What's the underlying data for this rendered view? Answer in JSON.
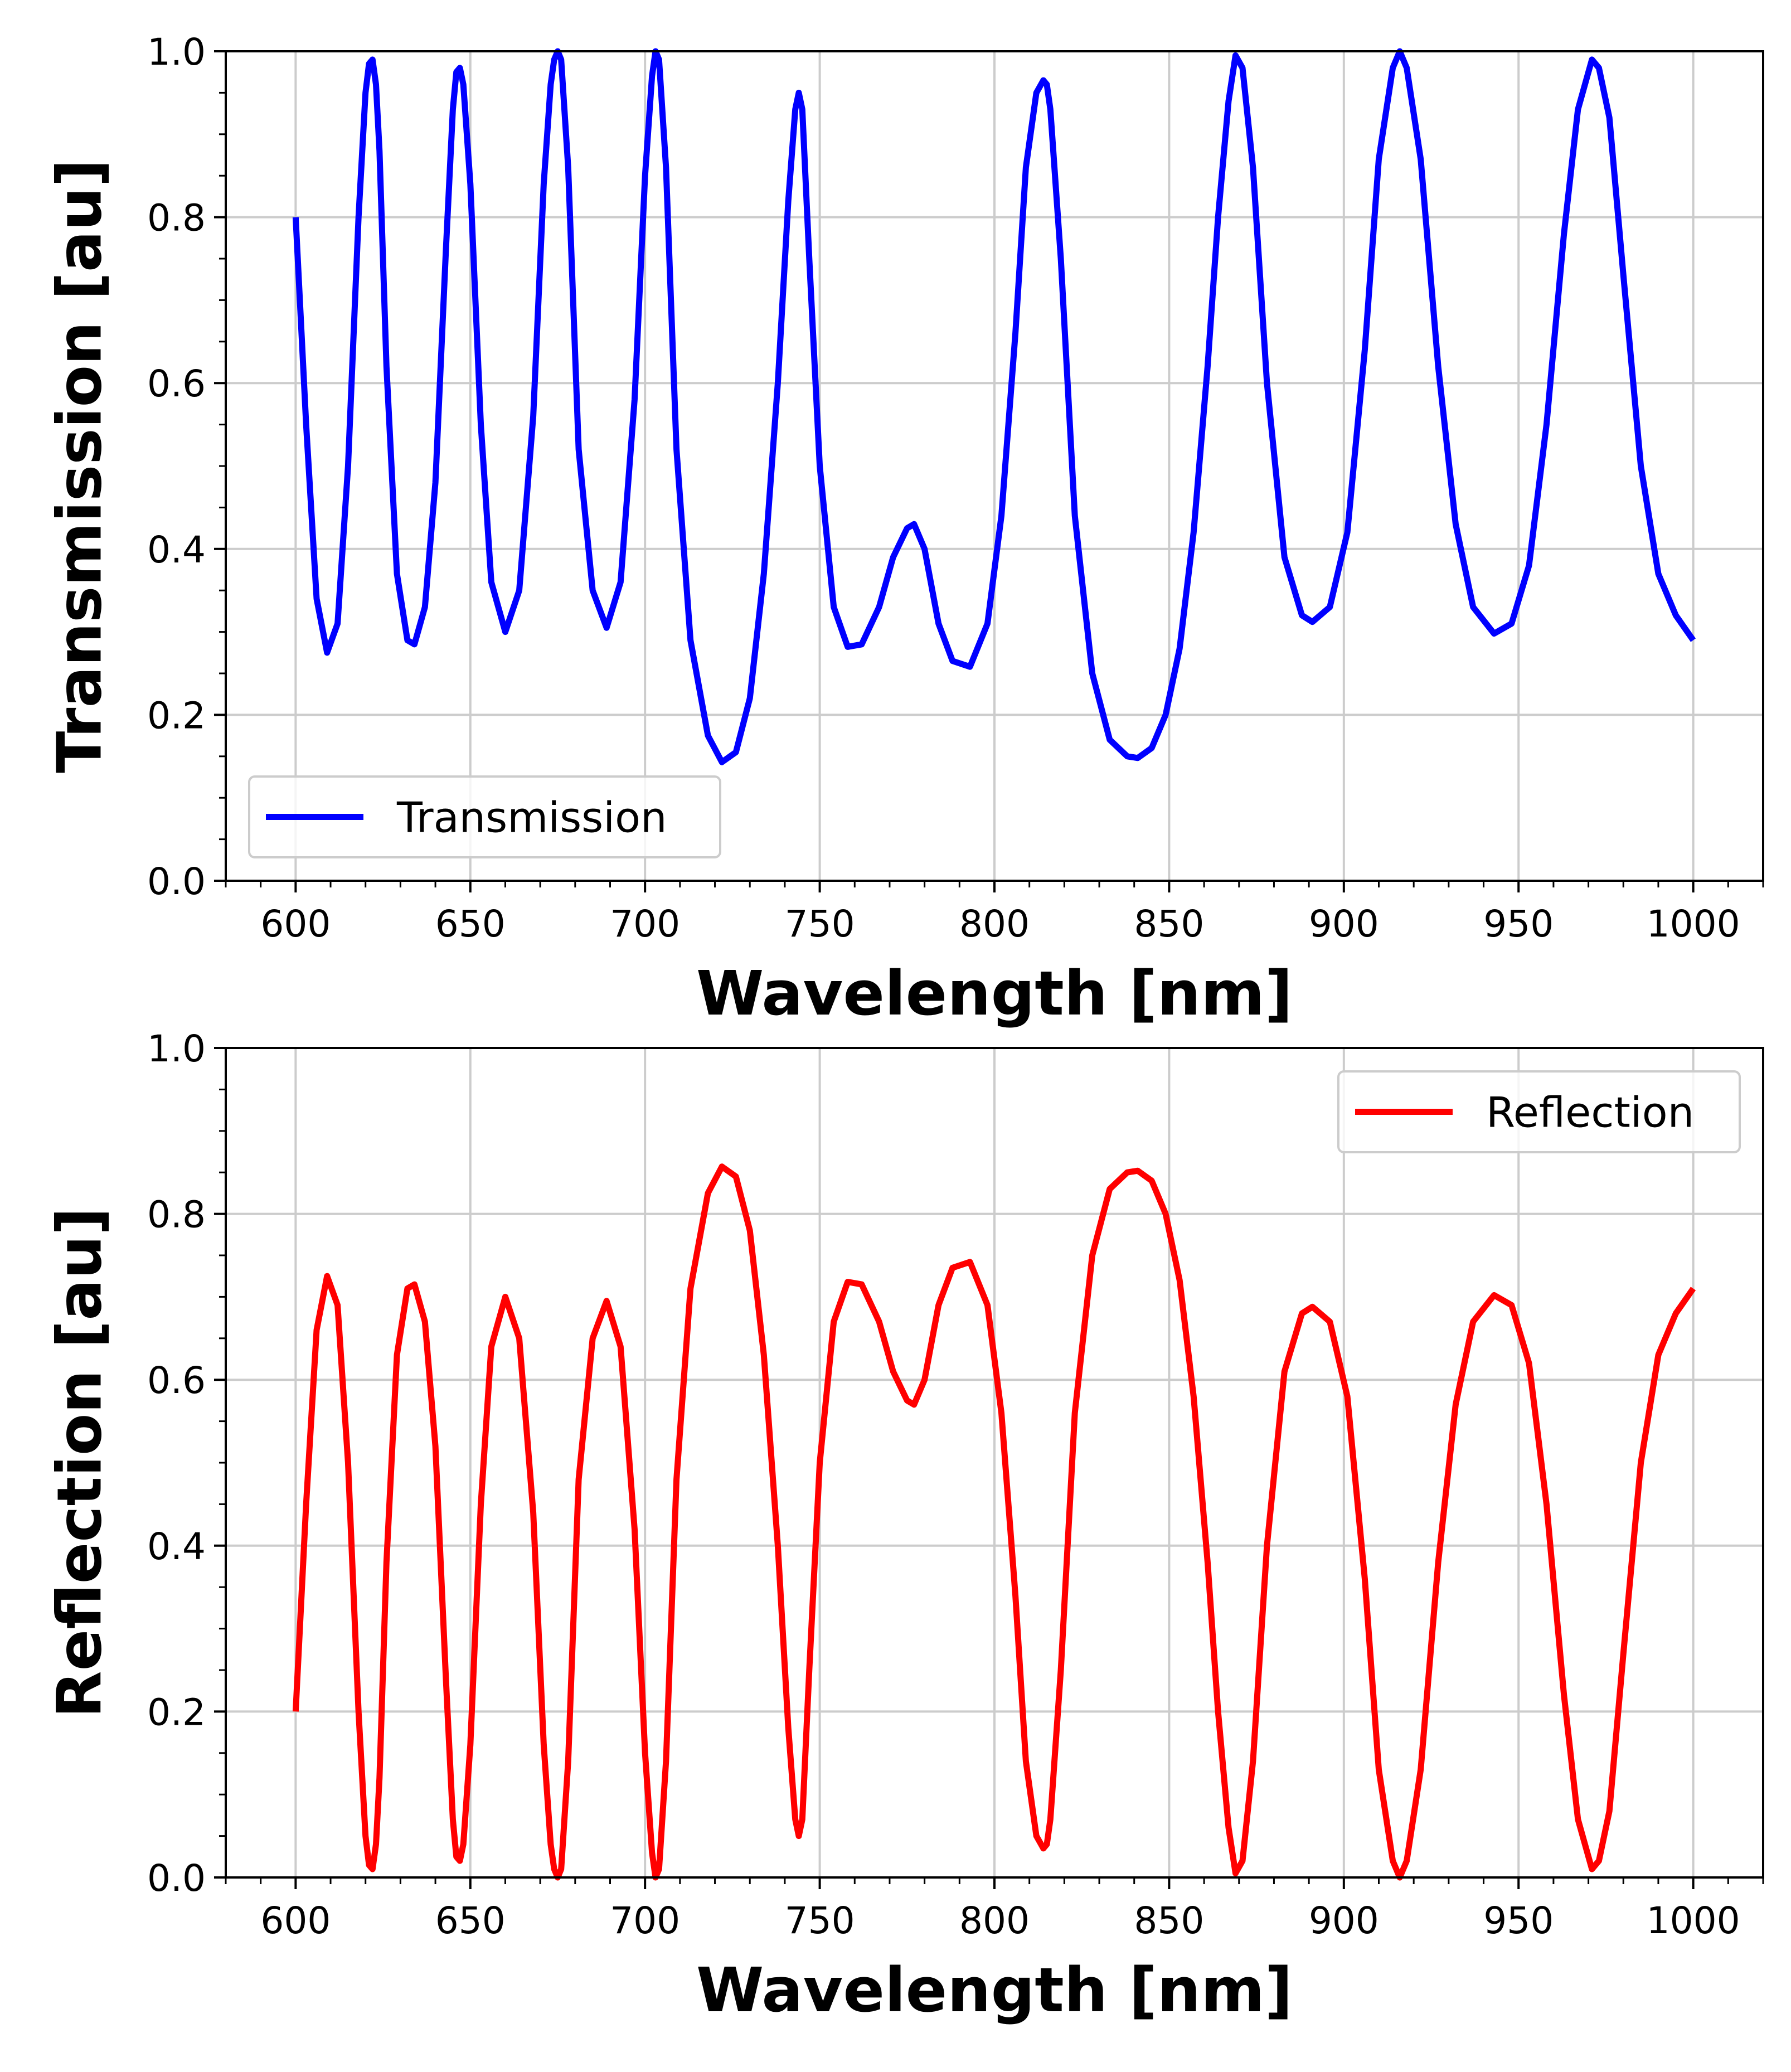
{
  "chart_data": [
    {
      "type": "line",
      "xlabel": "Wavelength [nm]",
      "ylabel": "Transmission [au]",
      "xlim": [
        580,
        1020
      ],
      "ylim": [
        0.0,
        1.0
      ],
      "xticks": [
        "600",
        "650",
        "700",
        "750",
        "800",
        "850",
        "900",
        "950",
        "1000"
      ],
      "yticks": [
        "0.0",
        "0.2",
        "0.4",
        "0.6",
        "0.8",
        "1.0"
      ],
      "grid": true,
      "legend_position": "lower left",
      "series": [
        {
          "name": "Transmission",
          "color": "#0000ff",
          "x": [
            600,
            603,
            606,
            609,
            612,
            615,
            618,
            620,
            621,
            622,
            623,
            624,
            626,
            629,
            632,
            634,
            637,
            640,
            643,
            645,
            646,
            647,
            648,
            650,
            653,
            656,
            660,
            664,
            668,
            671,
            673,
            674,
            675,
            676,
            678,
            681,
            685,
            689,
            693,
            697,
            700,
            702,
            703,
            704,
            706,
            709,
            713,
            718,
            722,
            726,
            730,
            734,
            738,
            741,
            743,
            744,
            745,
            747,
            750,
            754,
            758,
            762,
            767,
            771,
            775,
            777,
            780,
            784,
            788,
            793,
            798,
            802,
            806,
            809,
            812,
            814,
            815,
            816,
            819,
            823,
            828,
            833,
            838,
            841,
            845,
            849,
            853,
            857,
            861,
            864,
            867,
            869,
            871,
            874,
            878,
            883,
            888,
            891,
            896,
            901,
            906,
            910,
            914,
            916,
            918,
            922,
            927,
            932,
            937,
            943,
            948,
            953,
            958,
            963,
            967,
            971,
            973,
            976,
            980,
            985,
            990,
            995,
            1000
          ],
          "values": [
            0.8,
            0.55,
            0.34,
            0.275,
            0.31,
            0.5,
            0.8,
            0.95,
            0.985,
            0.99,
            0.96,
            0.88,
            0.62,
            0.37,
            0.29,
            0.285,
            0.33,
            0.48,
            0.76,
            0.93,
            0.975,
            0.98,
            0.96,
            0.84,
            0.55,
            0.36,
            0.3,
            0.35,
            0.56,
            0.84,
            0.96,
            0.99,
            1.0,
            0.99,
            0.86,
            0.52,
            0.35,
            0.305,
            0.36,
            0.58,
            0.85,
            0.97,
            1.0,
            0.99,
            0.86,
            0.52,
            0.29,
            0.175,
            0.143,
            0.155,
            0.22,
            0.37,
            0.6,
            0.82,
            0.93,
            0.95,
            0.93,
            0.75,
            0.5,
            0.33,
            0.282,
            0.285,
            0.33,
            0.39,
            0.425,
            0.43,
            0.4,
            0.31,
            0.265,
            0.258,
            0.31,
            0.44,
            0.66,
            0.86,
            0.95,
            0.965,
            0.96,
            0.93,
            0.75,
            0.44,
            0.25,
            0.17,
            0.15,
            0.148,
            0.16,
            0.2,
            0.28,
            0.42,
            0.62,
            0.8,
            0.94,
            0.995,
            0.98,
            0.86,
            0.6,
            0.39,
            0.32,
            0.312,
            0.33,
            0.42,
            0.64,
            0.87,
            0.98,
            1.0,
            0.98,
            0.87,
            0.62,
            0.43,
            0.33,
            0.298,
            0.31,
            0.38,
            0.55,
            0.78,
            0.93,
            0.99,
            0.98,
            0.92,
            0.73,
            0.5,
            0.37,
            0.32,
            0.29
          ]
        }
      ]
    },
    {
      "type": "line",
      "xlabel": "Wavelength [nm]",
      "ylabel": "Reflection [au]",
      "xlim": [
        580,
        1020
      ],
      "ylim": [
        0.0,
        1.0
      ],
      "xticks": [
        "600",
        "650",
        "700",
        "750",
        "800",
        "850",
        "900",
        "950",
        "1000"
      ],
      "yticks": [
        "0.0",
        "0.2",
        "0.4",
        "0.6",
        "0.8",
        "1.0"
      ],
      "grid": true,
      "legend_position": "upper right",
      "series": [
        {
          "name": "Reflection",
          "color": "#ff0000",
          "x": [
            600,
            603,
            606,
            609,
            612,
            615,
            618,
            620,
            621,
            622,
            623,
            624,
            626,
            629,
            632,
            634,
            637,
            640,
            643,
            645,
            646,
            647,
            648,
            650,
            653,
            656,
            660,
            664,
            668,
            671,
            673,
            674,
            675,
            676,
            678,
            681,
            685,
            689,
            693,
            697,
            700,
            702,
            703,
            704,
            706,
            709,
            713,
            718,
            722,
            726,
            730,
            734,
            738,
            741,
            743,
            744,
            745,
            747,
            750,
            754,
            758,
            762,
            767,
            771,
            775,
            777,
            780,
            784,
            788,
            793,
            798,
            802,
            806,
            809,
            812,
            814,
            815,
            816,
            819,
            823,
            828,
            833,
            838,
            841,
            845,
            849,
            853,
            857,
            861,
            864,
            867,
            869,
            871,
            874,
            878,
            883,
            888,
            891,
            896,
            901,
            906,
            910,
            914,
            916,
            918,
            922,
            927,
            932,
            937,
            943,
            948,
            953,
            958,
            963,
            967,
            971,
            973,
            976,
            980,
            985,
            990,
            995,
            1000
          ],
          "values": [
            0.2,
            0.45,
            0.66,
            0.725,
            0.69,
            0.5,
            0.2,
            0.05,
            0.015,
            0.01,
            0.04,
            0.12,
            0.38,
            0.63,
            0.71,
            0.715,
            0.67,
            0.52,
            0.24,
            0.07,
            0.025,
            0.02,
            0.04,
            0.16,
            0.45,
            0.64,
            0.7,
            0.65,
            0.44,
            0.16,
            0.04,
            0.01,
            0.0,
            0.01,
            0.14,
            0.48,
            0.65,
            0.695,
            0.64,
            0.42,
            0.15,
            0.03,
            0.0,
            0.01,
            0.14,
            0.48,
            0.71,
            0.825,
            0.857,
            0.845,
            0.78,
            0.63,
            0.4,
            0.18,
            0.07,
            0.05,
            0.07,
            0.25,
            0.5,
            0.67,
            0.718,
            0.715,
            0.67,
            0.61,
            0.575,
            0.57,
            0.6,
            0.69,
            0.735,
            0.742,
            0.69,
            0.56,
            0.34,
            0.14,
            0.05,
            0.035,
            0.04,
            0.07,
            0.25,
            0.56,
            0.75,
            0.83,
            0.85,
            0.852,
            0.84,
            0.8,
            0.72,
            0.58,
            0.38,
            0.2,
            0.06,
            0.005,
            0.02,
            0.14,
            0.4,
            0.61,
            0.68,
            0.688,
            0.67,
            0.58,
            0.36,
            0.13,
            0.02,
            0.0,
            0.02,
            0.13,
            0.38,
            0.57,
            0.67,
            0.702,
            0.69,
            0.62,
            0.45,
            0.22,
            0.07,
            0.01,
            0.02,
            0.08,
            0.27,
            0.5,
            0.63,
            0.68,
            0.71
          ]
        }
      ]
    }
  ]
}
